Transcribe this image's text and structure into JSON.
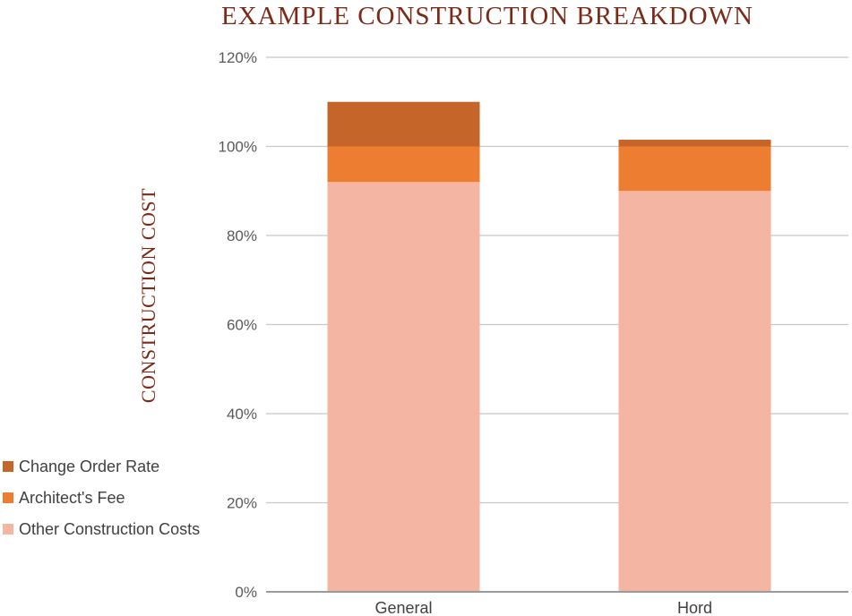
{
  "chart_data": {
    "type": "bar",
    "stacked": true,
    "title": "EXAMPLE CONSTRUCTION BREAKDOWN",
    "xlabel": "",
    "ylabel": "CONSTRUCTION COST",
    "categories": [
      "General",
      "Hord"
    ],
    "ylim": [
      0,
      120
    ],
    "yticks": [
      "0%",
      "20%",
      "40%",
      "60%",
      "80%",
      "100%",
      "120%"
    ],
    "grid": true,
    "legend_position": "left",
    "series": [
      {
        "name": "Other Construction Costs",
        "values": [
          92,
          90
        ],
        "color": "#f4b6a2"
      },
      {
        "name": "Architect's Fee",
        "values": [
          8,
          10
        ],
        "color": "#ed7d31"
      },
      {
        "name": "Change Order Rate",
        "values": [
          10,
          1.5
        ],
        "color": "#c5652a"
      }
    ],
    "legend_order": [
      "Change Order Rate",
      "Architect's Fee",
      "Other Construction Costs"
    ]
  }
}
